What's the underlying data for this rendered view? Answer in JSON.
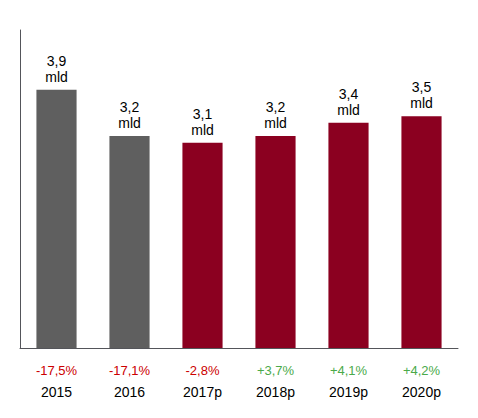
{
  "chart_data": {
    "type": "bar",
    "categories": [
      "2015",
      "2016",
      "2017p",
      "2018p",
      "2019p",
      "2020p"
    ],
    "values": [
      3.9,
      3.2,
      3.1,
      3.2,
      3.4,
      3.5
    ],
    "value_labels": [
      "3,9\nmld",
      "3,2\nmld",
      "3,1\nmld",
      "3,2\nmld",
      "3,4\nmld",
      "3,5\nmld"
    ],
    "data_labels": true,
    "colors": [
      "#5f5f5f",
      "#5f5f5f",
      "#8b0020",
      "#8b0020",
      "#8b0020",
      "#8b0020"
    ],
    "annotations": [
      {
        "category": "2015",
        "text": "-17,5%",
        "color": "#cc0000"
      },
      {
        "category": "2016",
        "text": "-17,1%",
        "color": "#cc0000"
      },
      {
        "category": "2017p",
        "text": "-2,8%",
        "color": "#cc0000"
      },
      {
        "category": "2018p",
        "text": "+3,7%",
        "color": "#4aaa4a"
      },
      {
        "category": "2019p",
        "text": "+4,1%",
        "color": "#4aaa4a"
      },
      {
        "category": "2020p",
        "text": "+4,2%",
        "color": "#4aaa4a"
      }
    ],
    "ylim": [
      0,
      4.8
    ],
    "grid": false,
    "tick_labels": "x"
  }
}
